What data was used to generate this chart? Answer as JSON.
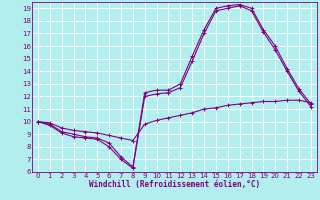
{
  "xlabel": "Windchill (Refroidissement éolien,°C)",
  "bg_color": "#b2eeee",
  "line_color": "#800080",
  "grid_color": "#ffffff",
  "xlim": [
    -0.5,
    23.5
  ],
  "ylim": [
    6,
    19.5
  ],
  "xticks": [
    0,
    1,
    2,
    3,
    4,
    5,
    6,
    7,
    8,
    9,
    10,
    11,
    12,
    13,
    14,
    15,
    16,
    17,
    18,
    19,
    20,
    21,
    22,
    23
  ],
  "yticks": [
    6,
    7,
    8,
    9,
    10,
    11,
    12,
    13,
    14,
    15,
    16,
    17,
    18,
    19
  ],
  "line1_x": [
    0,
    1,
    2,
    3,
    4,
    5,
    6,
    7,
    8,
    9,
    10,
    11,
    12,
    13,
    14,
    15,
    16,
    17,
    18,
    19,
    20,
    21,
    22,
    23
  ],
  "line1_y": [
    10.0,
    9.8,
    9.2,
    9.0,
    8.8,
    8.7,
    8.3,
    7.2,
    6.4,
    12.3,
    12.5,
    12.5,
    13.0,
    15.2,
    17.3,
    19.0,
    19.2,
    19.3,
    19.0,
    17.3,
    16.0,
    14.2,
    12.6,
    11.4
  ],
  "line2_x": [
    0,
    1,
    2,
    3,
    4,
    5,
    6,
    7,
    8,
    9,
    10,
    11,
    12,
    13,
    14,
    15,
    16,
    17,
    18,
    19,
    20,
    21,
    22,
    23
  ],
  "line2_y": [
    10.0,
    9.7,
    9.1,
    8.8,
    8.7,
    8.6,
    8.0,
    7.0,
    6.3,
    12.0,
    12.2,
    12.3,
    12.7,
    14.8,
    17.0,
    18.8,
    19.0,
    19.2,
    18.8,
    17.1,
    15.7,
    14.0,
    12.4,
    11.2
  ],
  "line3_x": [
    0,
    1,
    2,
    3,
    4,
    5,
    6,
    7,
    8,
    9,
    10,
    11,
    12,
    13,
    14,
    15,
    16,
    17,
    18,
    19,
    20,
    21,
    22,
    23
  ],
  "line3_y": [
    10.0,
    9.9,
    9.5,
    9.3,
    9.2,
    9.1,
    8.9,
    8.7,
    8.5,
    9.8,
    10.1,
    10.3,
    10.5,
    10.7,
    11.0,
    11.1,
    11.3,
    11.4,
    11.5,
    11.6,
    11.6,
    11.7,
    11.7,
    11.5
  ]
}
